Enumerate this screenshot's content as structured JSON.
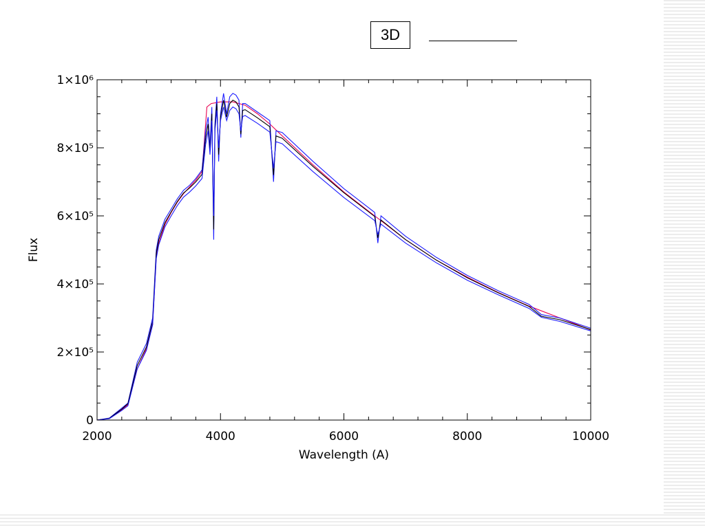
{
  "slide": {
    "title_box_text": "3D"
  },
  "chart_data": {
    "type": "line",
    "xlabel": "Wavelength (A)",
    "ylabel": "Flux",
    "xlim": [
      2000,
      10000
    ],
    "ylim": [
      0,
      1000000
    ],
    "x_ticks": [
      {
        "value": 2000,
        "label": "2000"
      },
      {
        "value": 4000,
        "label": "4000"
      },
      {
        "value": 6000,
        "label": "6000"
      },
      {
        "value": 8000,
        "label": "8000"
      },
      {
        "value": 10000,
        "label": "10000"
      }
    ],
    "y_ticks": [
      {
        "value": 0,
        "label": "0"
      },
      {
        "value": 200000,
        "label": "2×10⁵"
      },
      {
        "value": 400000,
        "label": "4×10⁵"
      },
      {
        "value": 600000,
        "label": "6×10⁵"
      },
      {
        "value": 800000,
        "label": "8×10⁵"
      },
      {
        "value": 1000000,
        "label": "1×10⁶"
      }
    ],
    "grid": false,
    "series": [
      {
        "color": "#e8004f",
        "points": [
          [
            2000,
            0
          ],
          [
            2200,
            5000
          ],
          [
            2400,
            30000
          ],
          [
            2500,
            45000
          ],
          [
            2550,
            80000
          ],
          [
            2650,
            150000
          ],
          [
            2800,
            210000
          ],
          [
            2900,
            280000
          ],
          [
            2960,
            480000
          ],
          [
            3000,
            520000
          ],
          [
            3100,
            575000
          ],
          [
            3200,
            610000
          ],
          [
            3300,
            640000
          ],
          [
            3400,
            665000
          ],
          [
            3500,
            685000
          ],
          [
            3600,
            705000
          ],
          [
            3700,
            730000
          ],
          [
            3780,
            920000
          ],
          [
            3850,
            930000
          ],
          [
            4000,
            935000
          ],
          [
            4200,
            935000
          ],
          [
            4400,
            925000
          ],
          [
            4600,
            900000
          ],
          [
            4800,
            870000
          ],
          [
            5000,
            835000
          ],
          [
            5500,
            750000
          ],
          [
            6000,
            670000
          ],
          [
            6500,
            600000
          ],
          [
            7000,
            530000
          ],
          [
            7500,
            470000
          ],
          [
            8000,
            420000
          ],
          [
            8500,
            375000
          ],
          [
            9000,
            335000
          ],
          [
            9500,
            300000
          ],
          [
            10000,
            265000
          ]
        ]
      },
      {
        "color": "#1a1aff",
        "points": [
          [
            2000,
            0
          ],
          [
            2200,
            6000
          ],
          [
            2400,
            35000
          ],
          [
            2500,
            50000
          ],
          [
            2550,
            90000
          ],
          [
            2650,
            170000
          ],
          [
            2800,
            225000
          ],
          [
            2900,
            300000
          ],
          [
            2960,
            500000
          ],
          [
            3000,
            540000
          ],
          [
            3100,
            590000
          ],
          [
            3200,
            620000
          ],
          [
            3300,
            650000
          ],
          [
            3400,
            675000
          ],
          [
            3500,
            690000
          ],
          [
            3600,
            710000
          ],
          [
            3700,
            735000
          ],
          [
            3760,
            850000
          ],
          [
            3800,
            890000
          ],
          [
            3830,
            800000
          ],
          [
            3860,
            920000
          ],
          [
            3890,
            530000
          ],
          [
            3910,
            870000
          ],
          [
            3940,
            950000
          ],
          [
            3970,
            760000
          ],
          [
            4000,
            900000
          ],
          [
            4050,
            960000
          ],
          [
            4100,
            900000
          ],
          [
            4150,
            950000
          ],
          [
            4200,
            960000
          ],
          [
            4250,
            955000
          ],
          [
            4300,
            940000
          ],
          [
            4330,
            830000
          ],
          [
            4360,
            930000
          ],
          [
            4400,
            930000
          ],
          [
            4600,
            905000
          ],
          [
            4800,
            880000
          ],
          [
            4860,
            700000
          ],
          [
            4900,
            850000
          ],
          [
            5000,
            845000
          ],
          [
            5500,
            760000
          ],
          [
            6000,
            680000
          ],
          [
            6500,
            610000
          ],
          [
            6550,
            520000
          ],
          [
            6600,
            600000
          ],
          [
            7000,
            540000
          ],
          [
            7500,
            478000
          ],
          [
            8000,
            425000
          ],
          [
            8500,
            380000
          ],
          [
            9000,
            340000
          ],
          [
            9200,
            310000
          ],
          [
            9500,
            300000
          ],
          [
            10000,
            270000
          ]
        ]
      },
      {
        "color": "#000000",
        "points": [
          [
            2000,
            0
          ],
          [
            2200,
            5000
          ],
          [
            2400,
            32000
          ],
          [
            2500,
            48000
          ],
          [
            2550,
            85000
          ],
          [
            2650,
            160000
          ],
          [
            2800,
            215000
          ],
          [
            2900,
            290000
          ],
          [
            2960,
            490000
          ],
          [
            3000,
            530000
          ],
          [
            3100,
            580000
          ],
          [
            3200,
            612000
          ],
          [
            3300,
            642000
          ],
          [
            3400,
            667000
          ],
          [
            3500,
            682000
          ],
          [
            3600,
            700000
          ],
          [
            3700,
            722000
          ],
          [
            3760,
            830000
          ],
          [
            3800,
            870000
          ],
          [
            3830,
            790000
          ],
          [
            3860,
            900000
          ],
          [
            3890,
            560000
          ],
          [
            3910,
            860000
          ],
          [
            3940,
            930000
          ],
          [
            3970,
            780000
          ],
          [
            4000,
            890000
          ],
          [
            4050,
            940000
          ],
          [
            4100,
            890000
          ],
          [
            4150,
            930000
          ],
          [
            4200,
            940000
          ],
          [
            4250,
            935000
          ],
          [
            4300,
            920000
          ],
          [
            4330,
            840000
          ],
          [
            4360,
            910000
          ],
          [
            4400,
            912000
          ],
          [
            4600,
            888000
          ],
          [
            4800,
            862000
          ],
          [
            4860,
            720000
          ],
          [
            4900,
            835000
          ],
          [
            5000,
            828000
          ],
          [
            5500,
            745000
          ],
          [
            6000,
            668000
          ],
          [
            6500,
            598000
          ],
          [
            6550,
            535000
          ],
          [
            6600,
            588000
          ],
          [
            7000,
            530000
          ],
          [
            7500,
            470000
          ],
          [
            8000,
            418000
          ],
          [
            8500,
            374000
          ],
          [
            9000,
            334000
          ],
          [
            9200,
            305000
          ],
          [
            9500,
            295000
          ],
          [
            10000,
            266000
          ]
        ]
      },
      {
        "color": "#1a1aff",
        "points": [
          [
            2000,
            0
          ],
          [
            2200,
            4000
          ],
          [
            2400,
            28000
          ],
          [
            2500,
            42000
          ],
          [
            2550,
            78000
          ],
          [
            2650,
            150000
          ],
          [
            2800,
            205000
          ],
          [
            2900,
            280000
          ],
          [
            2960,
            475000
          ],
          [
            3000,
            515000
          ],
          [
            3100,
            568000
          ],
          [
            3200,
            600000
          ],
          [
            3300,
            630000
          ],
          [
            3400,
            655000
          ],
          [
            3500,
            670000
          ],
          [
            3600,
            688000
          ],
          [
            3700,
            710000
          ],
          [
            3760,
            810000
          ],
          [
            3800,
            850000
          ],
          [
            3830,
            780000
          ],
          [
            3860,
            880000
          ],
          [
            3890,
            600000
          ],
          [
            3910,
            850000
          ],
          [
            3940,
            910000
          ],
          [
            3970,
            800000
          ],
          [
            4000,
            880000
          ],
          [
            4050,
            920000
          ],
          [
            4100,
            880000
          ],
          [
            4150,
            910000
          ],
          [
            4200,
            920000
          ],
          [
            4250,
            915000
          ],
          [
            4300,
            900000
          ],
          [
            4330,
            850000
          ],
          [
            4360,
            892000
          ],
          [
            4400,
            895000
          ],
          [
            4600,
            872000
          ],
          [
            4800,
            846000
          ],
          [
            4860,
            740000
          ],
          [
            4900,
            818000
          ],
          [
            5000,
            812000
          ],
          [
            5500,
            730000
          ],
          [
            6000,
            654000
          ],
          [
            6500,
            586000
          ],
          [
            6550,
            545000
          ],
          [
            6600,
            576000
          ],
          [
            7000,
            520000
          ],
          [
            7500,
            462000
          ],
          [
            8000,
            411000
          ],
          [
            8500,
            368000
          ],
          [
            9000,
            328000
          ],
          [
            9200,
            302000
          ],
          [
            9500,
            290000
          ],
          [
            10000,
            262000
          ]
        ]
      }
    ]
  }
}
